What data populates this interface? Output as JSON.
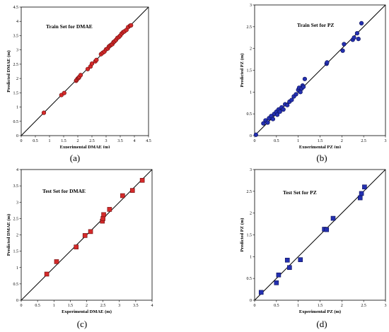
{
  "figure": {
    "captions": [
      "(a)",
      "(b)",
      "(c)",
      "(d)"
    ]
  },
  "chart_data": [
    {
      "type": "scatter",
      "title": "Train Set for DMAE",
      "xlabel": "Experimental DMAE (m)",
      "ylabel": "Predicted DMAE (m)",
      "xlim": [
        0,
        4.5
      ],
      "ylim": [
        0,
        4.5
      ],
      "xticks": [
        "0",
        "0.5",
        "1",
        "1.5",
        "2",
        "2.5",
        "3",
        "3.5",
        "4",
        "4.5"
      ],
      "yticks": [
        "0",
        "0.5",
        "1",
        "1.5",
        "2",
        "2.5",
        "3",
        "3.5",
        "4",
        "4.5"
      ],
      "marker": "circle",
      "color": "#d42a2a",
      "edge": "#6b0d0d",
      "series": [
        {
          "x": [
            0.8,
            1.42,
            1.52,
            1.94,
            1.96,
            2.0,
            2.03,
            2.05,
            2.1,
            2.35,
            2.45,
            2.5,
            2.62,
            2.66,
            2.82,
            2.88,
            2.94,
            3.0,
            3.06,
            3.1,
            3.14,
            3.18,
            3.22,
            3.26,
            3.3,
            3.35,
            3.4,
            3.45,
            3.5,
            3.55,
            3.6,
            3.65,
            3.72,
            3.78,
            3.85,
            3.88
          ],
          "y": [
            0.8,
            1.42,
            1.49,
            1.92,
            1.95,
            2.0,
            2.02,
            2.05,
            2.12,
            2.33,
            2.42,
            2.52,
            2.6,
            2.65,
            2.85,
            2.9,
            2.94,
            3.02,
            3.05,
            3.12,
            3.15,
            3.18,
            3.2,
            3.27,
            3.3,
            3.35,
            3.42,
            3.45,
            3.5,
            3.57,
            3.62,
            3.65,
            3.7,
            3.8,
            3.85,
            3.86
          ]
        }
      ],
      "reference_line": "y = x"
    },
    {
      "type": "scatter",
      "title": "Train Set for PZ",
      "xlabel": "Experimental  PZ (m)",
      "ylabel": "Predicted PZ (m)",
      "xlim": [
        0,
        3
      ],
      "ylim": [
        0,
        3
      ],
      "xticks": [
        "0",
        "0.5",
        "1",
        "1.5",
        "2",
        "2.5",
        "3"
      ],
      "yticks": [
        "0",
        "0.5",
        "1",
        "1.5",
        "2",
        "2.5",
        "3"
      ],
      "marker": "circle",
      "color": "#2430b0",
      "edge": "#0b0f55",
      "series": [
        {
          "x": [
            0.03,
            0.2,
            0.25,
            0.3,
            0.33,
            0.38,
            0.42,
            0.45,
            0.5,
            0.52,
            0.55,
            0.58,
            0.62,
            0.66,
            0.7,
            0.75,
            0.8,
            0.85,
            0.9,
            0.95,
            1.0,
            1.02,
            1.05,
            1.08,
            1.1,
            1.12,
            1.15,
            1.65,
            1.66,
            2.02,
            2.05,
            2.25,
            2.28,
            2.35,
            2.38,
            2.45
          ],
          "y": [
            0.02,
            0.28,
            0.35,
            0.3,
            0.4,
            0.45,
            0.38,
            0.5,
            0.55,
            0.48,
            0.6,
            0.55,
            0.65,
            0.6,
            0.72,
            0.7,
            0.78,
            0.82,
            0.9,
            0.95,
            1.05,
            1.1,
            1.0,
            1.08,
            1.15,
            1.12,
            1.3,
            1.65,
            1.68,
            1.95,
            2.1,
            2.2,
            2.25,
            2.35,
            2.22,
            2.58
          ]
        }
      ],
      "reference_line": "y = x"
    },
    {
      "type": "scatter",
      "title": "Test Set for DMAE",
      "xlabel": "Experimental DMAE (m)",
      "ylabel": "Predicted DMAE (m)",
      "xlim": [
        0,
        4
      ],
      "ylim": [
        0,
        4
      ],
      "xticks": [
        "0",
        "0.5",
        "1",
        "1.5",
        "2",
        "2.5",
        "3",
        "3.5",
        "4"
      ],
      "yticks": [
        "0",
        "0.5",
        "1",
        "1.5",
        "2",
        "2.5",
        "3",
        "3.5",
        "4"
      ],
      "marker": "square",
      "color": "#d42a2a",
      "edge": "#6b0d0d",
      "series": [
        {
          "x": [
            0.78,
            1.08,
            1.68,
            1.95,
            2.12,
            2.48,
            2.5,
            2.52,
            2.7,
            3.1,
            3.4,
            3.7
          ],
          "y": [
            0.8,
            1.18,
            1.63,
            1.98,
            2.1,
            2.42,
            2.5,
            2.62,
            2.78,
            3.2,
            3.36,
            3.67
          ]
        }
      ],
      "reference_line": "y = x"
    },
    {
      "type": "scatter",
      "title": "Test Set for PZ",
      "xlabel": "Experimental PZ (m)",
      "ylabel": "Predicted PZ (m)",
      "xlim": [
        0,
        3
      ],
      "ylim": [
        0,
        3
      ],
      "xticks": [
        "0",
        "0.5",
        "1",
        "1.5",
        "2",
        "2.5",
        "3"
      ],
      "yticks": [
        "0",
        "0.5",
        "1",
        "1.5",
        "2",
        "2.5",
        "3"
      ],
      "marker": "square",
      "color": "#2430b0",
      "edge": "#0b0f55",
      "series": [
        {
          "x": [
            0.15,
            0.5,
            0.55,
            0.75,
            0.8,
            1.05,
            1.6,
            1.65,
            1.8,
            2.42,
            2.45,
            2.52
          ],
          "y": [
            0.18,
            0.4,
            0.58,
            0.92,
            0.75,
            0.93,
            1.63,
            1.62,
            1.88,
            2.35,
            2.45,
            2.6
          ]
        }
      ],
      "reference_line": "y = x"
    }
  ]
}
